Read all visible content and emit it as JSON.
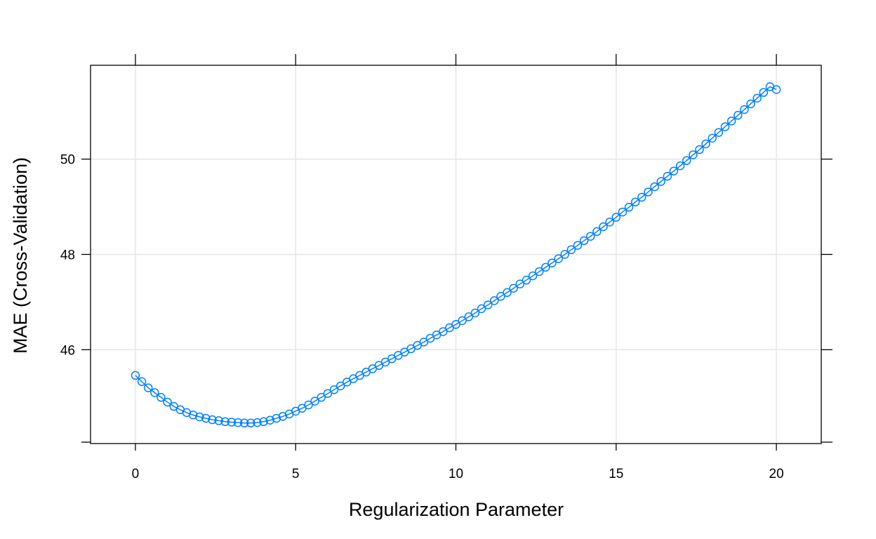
{
  "chart_data": {
    "type": "scatter",
    "title": "",
    "xlabel": "Regularization Parameter",
    "ylabel": "MAE (Cross-Validation)",
    "xlim": [
      -1.4,
      21.4
    ],
    "ylim": [
      44.03,
      51.97
    ],
    "x_ticks": [
      0,
      5,
      10,
      15,
      20
    ],
    "y_ticks": [
      46,
      48,
      50
    ],
    "grid": true,
    "marker": "open-circle",
    "colors": {
      "series": "#0080FF",
      "grid": "#E6E6E6",
      "frame": "#000000",
      "background": "#FFFFFF"
    },
    "series": [
      {
        "x": [
          0,
          0.2,
          0.4,
          0.6,
          0.8,
          1.0,
          1.2,
          1.4,
          1.6,
          1.8,
          2.0,
          2.2,
          2.4,
          2.6,
          2.8,
          3.0,
          3.2,
          3.4,
          3.6,
          3.8,
          4.0,
          4.2,
          4.4,
          4.6,
          4.8,
          5.0,
          5.2,
          5.4,
          5.6,
          5.8,
          6.0,
          6.2,
          6.4,
          6.6,
          6.8,
          7.0,
          7.2,
          7.4,
          7.6,
          7.8,
          8.0,
          8.2,
          8.4,
          8.6,
          8.8,
          9.0,
          9.2,
          9.4,
          9.6,
          9.8,
          10.0,
          10.2,
          10.4,
          10.6,
          10.8,
          11.0,
          11.2,
          11.4,
          11.6,
          11.8,
          12.0,
          12.2,
          12.4,
          12.6,
          12.8,
          13.0,
          13.2,
          13.4,
          13.6,
          13.8,
          14.0,
          14.2,
          14.4,
          14.6,
          14.8,
          15.0,
          15.2,
          15.4,
          15.6,
          15.8,
          16.0,
          16.2,
          16.4,
          16.6,
          16.8,
          17.0,
          17.2,
          17.4,
          17.6,
          17.8,
          18.0,
          18.2,
          18.4,
          18.6,
          18.8,
          19.0,
          19.2,
          19.4,
          19.6,
          19.8,
          20.0
        ],
        "y": [
          45.46,
          45.33,
          45.2,
          45.1,
          45.0,
          44.9,
          44.81,
          44.74,
          44.68,
          44.63,
          44.59,
          44.56,
          44.53,
          44.51,
          44.49,
          44.48,
          44.47,
          44.46,
          44.46,
          44.47,
          44.49,
          44.52,
          44.56,
          44.6,
          44.65,
          44.71,
          44.77,
          44.84,
          44.92,
          45.0,
          45.08,
          45.16,
          45.24,
          45.32,
          45.39,
          45.46,
          45.53,
          45.6,
          45.67,
          45.74,
          45.81,
          45.88,
          45.95,
          46.02,
          46.09,
          46.16,
          46.24,
          46.31,
          46.38,
          46.46,
          46.53,
          46.61,
          46.69,
          46.77,
          46.86,
          46.94,
          47.03,
          47.12,
          47.2,
          47.29,
          47.38,
          47.46,
          47.55,
          47.64,
          47.73,
          47.82,
          47.91,
          48.0,
          48.1,
          48.19,
          48.29,
          48.38,
          48.48,
          48.58,
          48.68,
          48.78,
          48.89,
          48.99,
          49.1,
          49.2,
          49.31,
          49.42,
          49.53,
          49.64,
          49.75,
          49.86,
          49.97,
          50.09,
          50.2,
          50.32,
          50.44,
          50.56,
          50.68,
          50.8,
          50.92,
          51.04,
          51.16,
          51.28,
          51.4,
          51.52,
          51.46
        ]
      }
    ]
  }
}
